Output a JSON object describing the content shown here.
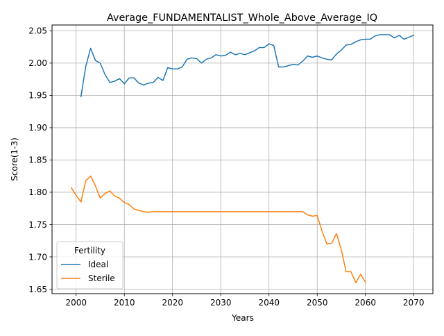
{
  "chart_data": {
    "type": "line",
    "title": "Average_FUNDAMENTALIST_Whole_Above_Average_IQ",
    "xlabel": "Years",
    "ylabel": "Score(1-3)",
    "xlim": [
      1995,
      2074
    ],
    "ylim": [
      1.643,
      2.059
    ],
    "xticks": [
      "2000",
      "2010",
      "2020",
      "2030",
      "2040",
      "2050",
      "2060",
      "2070"
    ],
    "yticks": [
      "1.65",
      "1.70",
      "1.75",
      "1.80",
      "1.85",
      "1.90",
      "1.95",
      "2.00",
      "2.05"
    ],
    "grid": true,
    "legend": {
      "title": "Fertility",
      "placement": "lower-left"
    },
    "series": [
      {
        "name": "Ideal",
        "color": "#1f77b4",
        "x": [
          2001,
          2002,
          2003,
          2004,
          2005,
          2006,
          2007,
          2008,
          2009,
          2010,
          2011,
          2012,
          2013,
          2014,
          2015,
          2016,
          2017,
          2018,
          2019,
          2020,
          2021,
          2022,
          2023,
          2024,
          2025,
          2026,
          2027,
          2028,
          2029,
          2030,
          2031,
          2032,
          2033,
          2034,
          2035,
          2036,
          2037,
          2038,
          2039,
          2040,
          2041,
          2042,
          2043,
          2044,
          2045,
          2046,
          2047,
          2048,
          2049,
          2050,
          2051,
          2052,
          2053,
          2054,
          2055,
          2056,
          2057,
          2058,
          2059,
          2060,
          2061,
          2062,
          2063,
          2064,
          2065,
          2066,
          2067,
          2068,
          2069,
          2070
        ],
        "y": [
          1.948,
          1.995,
          2.023,
          2.004,
          2.0,
          1.982,
          1.97,
          1.972,
          1.976,
          1.968,
          1.977,
          1.977,
          1.969,
          1.966,
          1.969,
          1.97,
          1.978,
          1.973,
          1.993,
          1.991,
          1.991,
          1.994,
          2.006,
          2.008,
          2.007,
          2.0,
          2.006,
          2.008,
          2.013,
          2.011,
          2.012,
          2.017,
          2.013,
          2.015,
          2.013,
          2.016,
          2.019,
          2.024,
          2.024,
          2.03,
          2.027,
          1.994,
          1.994,
          1.996,
          1.998,
          1.997,
          2.003,
          2.011,
          2.009,
          2.011,
          2.008,
          2.006,
          2.005,
          2.014,
          2.02,
          2.028,
          2.029,
          2.033,
          2.036,
          2.037,
          2.037,
          2.042,
          2.044,
          2.044,
          2.044,
          2.039,
          2.043,
          2.037,
          2.04,
          2.043
        ]
      },
      {
        "name": "Sterile",
        "color": "#ff7f0e",
        "x": [
          1999,
          2000,
          2001,
          2002,
          2003,
          2004,
          2005,
          2006,
          2007,
          2008,
          2009,
          2010,
          2011,
          2012,
          2013,
          2014,
          2015,
          2016,
          2017,
          2018,
          2019,
          2020,
          2021,
          2022,
          2023,
          2024,
          2025,
          2026,
          2027,
          2028,
          2029,
          2030,
          2031,
          2032,
          2033,
          2034,
          2035,
          2036,
          2037,
          2038,
          2039,
          2040,
          2041,
          2042,
          2043,
          2044,
          2045,
          2046,
          2047,
          2048,
          2049,
          2050,
          2051,
          2052,
          2053,
          2054,
          2055,
          2056,
          2057,
          2058,
          2059,
          2060
        ],
        "y": [
          1.807,
          1.795,
          1.785,
          1.818,
          1.825,
          1.81,
          1.791,
          1.798,
          1.802,
          1.794,
          1.791,
          1.784,
          1.781,
          1.774,
          1.772,
          1.77,
          1.769,
          1.77,
          1.77,
          1.77,
          1.77,
          1.77,
          1.77,
          1.77,
          1.77,
          1.77,
          1.77,
          1.77,
          1.77,
          1.77,
          1.77,
          1.77,
          1.77,
          1.77,
          1.77,
          1.77,
          1.77,
          1.77,
          1.77,
          1.77,
          1.77,
          1.77,
          1.77,
          1.77,
          1.77,
          1.77,
          1.77,
          1.77,
          1.77,
          1.765,
          1.763,
          1.764,
          1.74,
          1.72,
          1.721,
          1.736,
          1.711,
          1.677,
          1.677,
          1.66,
          1.673,
          1.661
        ]
      }
    ]
  }
}
